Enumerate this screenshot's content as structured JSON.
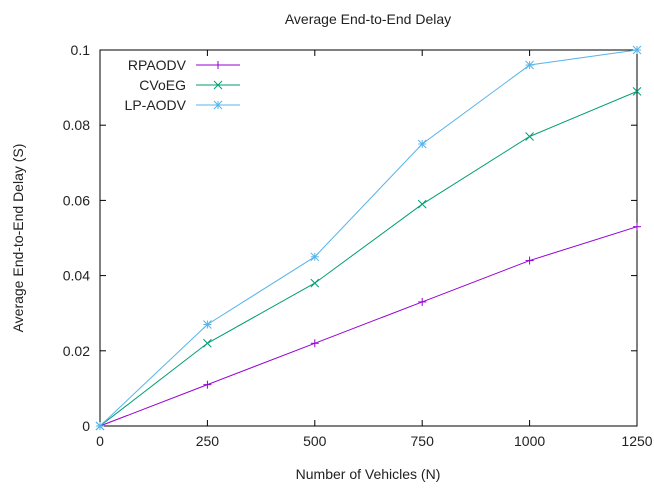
{
  "chart_data": {
    "type": "line",
    "title": "Average End-to-End Delay",
    "xlabel": "Number of Vehicles (N)",
    "ylabel": "Average End-to-End Delay (S)",
    "xlim": [
      0,
      1250
    ],
    "ylim": [
      0,
      0.1
    ],
    "x_ticks": [
      0,
      250,
      500,
      750,
      1000,
      1250
    ],
    "x_tick_labels": [
      "0",
      "250",
      "500",
      "750",
      "1000",
      "1250"
    ],
    "y_ticks": [
      0,
      0.02,
      0.04,
      0.06,
      0.08,
      0.1
    ],
    "y_tick_labels": [
      "0",
      "0.02",
      "0.04",
      "0.06",
      "0.08",
      "0.1"
    ],
    "grid": false,
    "legend_position": "top-left",
    "x": [
      0,
      250,
      500,
      750,
      1000,
      1250
    ],
    "series": [
      {
        "name": "RPAODV",
        "color": "#9400d3",
        "marker": "plus",
        "values": [
          0,
          0.011,
          0.022,
          0.033,
          0.044,
          0.053
        ]
      },
      {
        "name": "CVoEG",
        "color": "#009e73",
        "marker": "cross",
        "values": [
          0,
          0.022,
          0.038,
          0.059,
          0.077,
          0.089
        ]
      },
      {
        "name": "LP-AODV",
        "color": "#56b4e9",
        "marker": "star",
        "values": [
          0,
          0.027,
          0.045,
          0.075,
          0.096,
          0.1
        ]
      }
    ]
  }
}
